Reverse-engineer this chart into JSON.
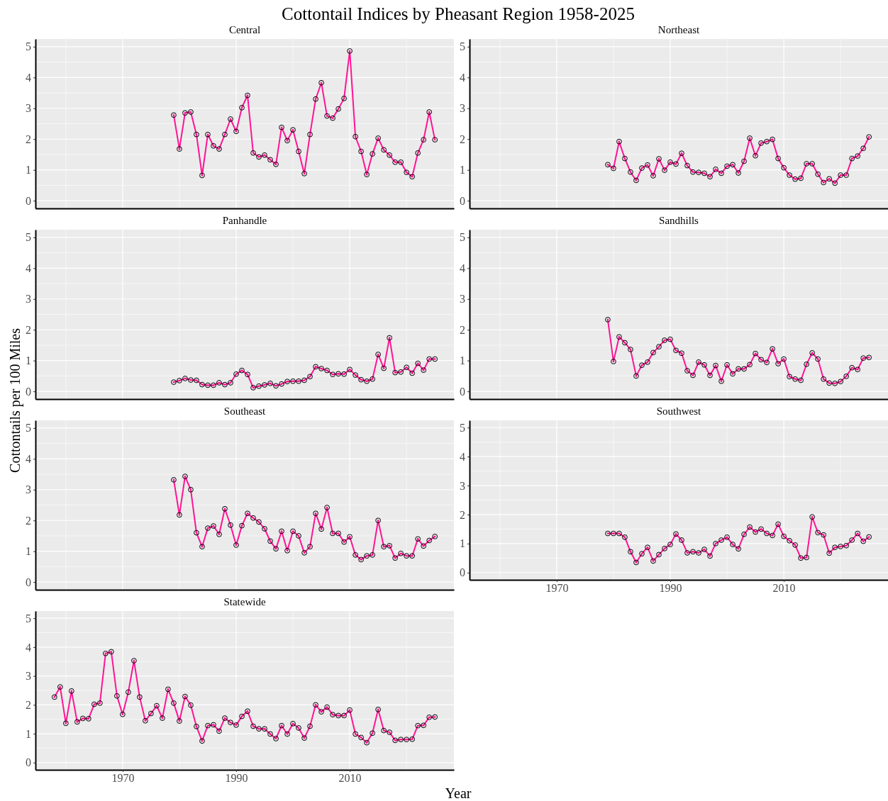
{
  "chart_data": [
    {
      "type": "line",
      "title": "Central",
      "annotations": [
        "Cottontail Indices by Pheasant Region 1958-2025",
        "Cottontails per 100 Miles",
        "Year"
      ],
      "x": [
        1979,
        1980,
        1981,
        1982,
        1983,
        1984,
        1985,
        1986,
        1987,
        1988,
        1989,
        1990,
        1991,
        1992,
        1993,
        1994,
        1995,
        1996,
        1997,
        1998,
        1999,
        2000,
        2001,
        2002,
        2003,
        2004,
        2005,
        2006,
        2007,
        2008,
        2009,
        2010,
        2011,
        2012,
        2013,
        2014,
        2015,
        2016,
        2017,
        2018,
        2019,
        2020,
        2021,
        2022,
        2023,
        2024,
        2025
      ],
      "series": [
        {
          "color": "#ff1493",
          "values": [
            2.78,
            1.68,
            2.85,
            2.88,
            2.15,
            0.82,
            2.15,
            1.78,
            1.68,
            2.15,
            2.65,
            2.25,
            3.02,
            3.42,
            1.55,
            1.42,
            1.48,
            1.33,
            1.18,
            2.38,
            1.95,
            2.3,
            1.6,
            0.88,
            2.15,
            3.3,
            3.83,
            2.75,
            2.68,
            2.98,
            3.32,
            4.86,
            2.08,
            1.6,
            0.85,
            1.52,
            2.03,
            1.65,
            1.48,
            1.25,
            1.25,
            0.92,
            0.78,
            1.55,
            1.98,
            2.88,
            1.98
          ]
        }
      ],
      "xlim": [
        1954.65,
        2028.35
      ],
      "ylim": [
        -0.25,
        5.25
      ],
      "xticks": [
        1970,
        1990,
        2010
      ],
      "yticks": [
        0,
        1,
        2,
        3,
        4,
        5
      ],
      "grid": true,
      "marker": "circle",
      "tick_labels": "y"
    },
    {
      "type": "line",
      "title": "Northeast",
      "x": [
        1979,
        1980,
        1981,
        1982,
        1983,
        1984,
        1985,
        1986,
        1987,
        1988,
        1989,
        1990,
        1991,
        1992,
        1993,
        1994,
        1995,
        1996,
        1997,
        1998,
        1999,
        2000,
        2001,
        2002,
        2003,
        2004,
        2005,
        2006,
        2007,
        2008,
        2009,
        2010,
        2011,
        2012,
        2013,
        2014,
        2015,
        2016,
        2017,
        2018,
        2019,
        2020,
        2021,
        2022,
        2023,
        2024,
        2025
      ],
      "series": [
        {
          "color": "#ff1493",
          "values": [
            1.17,
            1.05,
            1.92,
            1.37,
            0.93,
            0.66,
            1.06,
            1.16,
            0.81,
            1.36,
            0.99,
            1.25,
            1.19,
            1.54,
            1.14,
            0.93,
            0.92,
            0.89,
            0.78,
            1.02,
            0.89,
            1.12,
            1.17,
            0.9,
            1.28,
            2.03,
            1.46,
            1.87,
            1.92,
            1.99,
            1.37,
            1.07,
            0.83,
            0.7,
            0.73,
            1.2,
            1.2,
            0.86,
            0.59,
            0.71,
            0.57,
            0.83,
            0.83,
            1.37,
            1.45,
            1.7,
            2.07
          ]
        }
      ],
      "xlim": [
        1954.65,
        2028.35
      ],
      "ylim": [
        -0.25,
        5.25
      ],
      "xticks": [
        1970,
        1990,
        2010
      ],
      "yticks": [
        0,
        1,
        2,
        3,
        4,
        5
      ],
      "grid": true,
      "marker": "circle",
      "tick_labels": "y"
    },
    {
      "type": "line",
      "title": "Panhandle",
      "x": [
        1979,
        1980,
        1981,
        1982,
        1983,
        1984,
        1985,
        1986,
        1987,
        1988,
        1989,
        1990,
        1991,
        1992,
        1993,
        1994,
        1995,
        1996,
        1997,
        1998,
        1999,
        2000,
        2001,
        2002,
        2003,
        2004,
        2005,
        2006,
        2007,
        2008,
        2009,
        2010,
        2011,
        2012,
        2013,
        2014,
        2015,
        2016,
        2017,
        2018,
        2019,
        2020,
        2021,
        2022,
        2023,
        2024,
        2025
      ],
      "series": [
        {
          "color": "#ff1493",
          "values": [
            0.3,
            0.35,
            0.42,
            0.37,
            0.36,
            0.22,
            0.2,
            0.2,
            0.28,
            0.22,
            0.28,
            0.56,
            0.68,
            0.55,
            0.12,
            0.17,
            0.21,
            0.26,
            0.18,
            0.24,
            0.32,
            0.33,
            0.33,
            0.36,
            0.48,
            0.8,
            0.74,
            0.68,
            0.55,
            0.57,
            0.56,
            0.71,
            0.53,
            0.38,
            0.33,
            0.4,
            1.2,
            0.75,
            1.74,
            0.61,
            0.63,
            0.78,
            0.59,
            0.91,
            0.69,
            1.05,
            1.05
          ]
        }
      ],
      "xlim": [
        1954.65,
        2028.35
      ],
      "ylim": [
        -0.25,
        5.25
      ],
      "xticks": [
        1970,
        1990,
        2010
      ],
      "yticks": [
        0,
        1,
        2,
        3,
        4,
        5
      ],
      "grid": true,
      "marker": "circle",
      "tick_labels": "y"
    },
    {
      "type": "line",
      "title": "Sandhills",
      "x": [
        1979,
        1980,
        1981,
        1982,
        1983,
        1984,
        1985,
        1986,
        1987,
        1988,
        1989,
        1990,
        1991,
        1992,
        1993,
        1994,
        1995,
        1996,
        1997,
        1998,
        1999,
        2000,
        2001,
        2002,
        2003,
        2004,
        2005,
        2006,
        2007,
        2008,
        2009,
        2010,
        2011,
        2012,
        2013,
        2014,
        2015,
        2016,
        2017,
        2018,
        2019,
        2020,
        2021,
        2022,
        2023,
        2024,
        2025
      ],
      "series": [
        {
          "color": "#ff1493",
          "values": [
            2.33,
            0.97,
            1.77,
            1.58,
            1.36,
            0.5,
            0.85,
            0.95,
            1.26,
            1.45,
            1.66,
            1.69,
            1.33,
            1.24,
            0.67,
            0.52,
            0.95,
            0.86,
            0.52,
            0.84,
            0.33,
            0.86,
            0.57,
            0.73,
            0.73,
            0.87,
            1.23,
            1.03,
            0.94,
            1.38,
            0.9,
            1.05,
            0.48,
            0.4,
            0.36,
            0.88,
            1.25,
            1.05,
            0.4,
            0.27,
            0.26,
            0.32,
            0.49,
            0.77,
            0.71,
            1.08,
            1.1
          ]
        }
      ],
      "xlim": [
        1954.65,
        2028.35
      ],
      "ylim": [
        -0.25,
        5.25
      ],
      "xticks": [
        1970,
        1990,
        2010
      ],
      "yticks": [
        0,
        1,
        2,
        3,
        4,
        5
      ],
      "grid": true,
      "marker": "circle",
      "tick_labels": "y"
    },
    {
      "type": "line",
      "title": "Southeast",
      "x": [
        1979,
        1980,
        1981,
        1982,
        1983,
        1984,
        1985,
        1986,
        1987,
        1988,
        1989,
        1990,
        1991,
        1992,
        1993,
        1994,
        1995,
        1996,
        1997,
        1998,
        1999,
        2000,
        2001,
        2002,
        2003,
        2004,
        2005,
        2006,
        2007,
        2008,
        2009,
        2010,
        2011,
        2012,
        2013,
        2014,
        2015,
        2016,
        2017,
        2018,
        2019,
        2020,
        2021,
        2022,
        2023,
        2024,
        2025
      ],
      "series": [
        {
          "color": "#ff1493",
          "values": [
            3.32,
            2.18,
            3.43,
            3.0,
            1.6,
            1.15,
            1.75,
            1.82,
            1.55,
            2.38,
            1.85,
            1.2,
            1.83,
            2.23,
            2.08,
            1.95,
            1.73,
            1.33,
            1.08,
            1.65,
            1.02,
            1.65,
            1.5,
            0.95,
            1.15,
            2.23,
            1.72,
            2.42,
            1.58,
            1.58,
            1.3,
            1.47,
            0.88,
            0.73,
            0.85,
            0.88,
            2.0,
            1.15,
            1.18,
            0.78,
            0.93,
            0.85,
            0.85,
            1.4,
            1.17,
            1.35,
            1.48
          ]
        }
      ],
      "xlim": [
        1954.65,
        2028.35
      ],
      "ylim": [
        -0.25,
        5.25
      ],
      "xticks": [
        1970,
        1990,
        2010
      ],
      "yticks": [
        0,
        1,
        2,
        3,
        4,
        5
      ],
      "grid": true,
      "marker": "circle",
      "tick_labels": "y"
    },
    {
      "type": "line",
      "title": "Southwest",
      "x": [
        1979,
        1980,
        1981,
        1982,
        1983,
        1984,
        1985,
        1986,
        1987,
        1988,
        1989,
        1990,
        1991,
        1992,
        1993,
        1994,
        1995,
        1996,
        1997,
        1998,
        1999,
        2000,
        2001,
        2002,
        2003,
        2004,
        2005,
        2006,
        2007,
        2008,
        2009,
        2010,
        2011,
        2012,
        2013,
        2014,
        2015,
        2016,
        2017,
        2018,
        2019,
        2020,
        2021,
        2022,
        2023,
        2024,
        2025
      ],
      "series": [
        {
          "color": "#ff1493",
          "values": [
            1.35,
            1.35,
            1.35,
            1.22,
            0.72,
            0.35,
            0.65,
            0.87,
            0.4,
            0.62,
            0.83,
            0.97,
            1.33,
            1.12,
            0.68,
            0.72,
            0.68,
            0.8,
            0.57,
            1.0,
            1.12,
            1.22,
            0.97,
            0.82,
            1.32,
            1.57,
            1.4,
            1.5,
            1.35,
            1.28,
            1.67,
            1.25,
            1.1,
            0.95,
            0.5,
            0.52,
            1.92,
            1.38,
            1.3,
            0.67,
            0.87,
            0.9,
            0.93,
            1.12,
            1.35,
            1.08,
            1.23
          ]
        }
      ],
      "xlim": [
        1954.65,
        2028.35
      ],
      "ylim": [
        -0.25,
        5.25
      ],
      "xticks": [
        1970,
        1990,
        2010
      ],
      "yticks": [
        0,
        1,
        2,
        3,
        4,
        5
      ],
      "grid": true,
      "marker": "circle"
    },
    {
      "type": "line",
      "title": "Statewide",
      "x": [
        1958,
        1959,
        1960,
        1961,
        1962,
        1963,
        1964,
        1965,
        1966,
        1967,
        1968,
        1969,
        1970,
        1971,
        1972,
        1973,
        1974,
        1975,
        1976,
        1977,
        1978,
        1979,
        1980,
        1981,
        1982,
        1983,
        1984,
        1985,
        1986,
        1987,
        1988,
        1989,
        1990,
        1991,
        1992,
        1993,
        1994,
        1995,
        1996,
        1997,
        1998,
        1999,
        2000,
        2001,
        2002,
        2003,
        2004,
        2005,
        2006,
        2007,
        2008,
        2009,
        2010,
        2011,
        2012,
        2013,
        2014,
        2015,
        2016,
        2017,
        2018,
        2019,
        2020,
        2021,
        2022,
        2023,
        2024,
        2025
      ],
      "series": [
        {
          "color": "#ff1493",
          "values": [
            2.27,
            2.62,
            1.36,
            2.48,
            1.41,
            1.53,
            1.52,
            2.02,
            2.06,
            3.78,
            3.84,
            2.31,
            1.67,
            2.44,
            3.53,
            2.27,
            1.45,
            1.7,
            1.97,
            1.54,
            2.54,
            2.06,
            1.44,
            2.29,
            1.99,
            1.25,
            0.75,
            1.28,
            1.31,
            1.09,
            1.54,
            1.39,
            1.3,
            1.6,
            1.78,
            1.26,
            1.17,
            1.17,
            0.99,
            0.83,
            1.28,
            0.99,
            1.35,
            1.2,
            0.85,
            1.26,
            2.0,
            1.76,
            1.92,
            1.66,
            1.63,
            1.63,
            1.82,
            0.99,
            0.87,
            0.69,
            1.02,
            1.84,
            1.11,
            1.05,
            0.77,
            0.8,
            0.8,
            0.81,
            1.28,
            1.29,
            1.57,
            1.58
          ]
        }
      ],
      "xlim": [
        1954.65,
        2028.35
      ],
      "ylim": [
        -0.25,
        5.25
      ],
      "xticks": [
        1970,
        1990,
        2010
      ],
      "yticks": [
        0,
        1,
        2,
        3,
        4,
        5
      ],
      "grid": true,
      "marker": "circle"
    }
  ]
}
